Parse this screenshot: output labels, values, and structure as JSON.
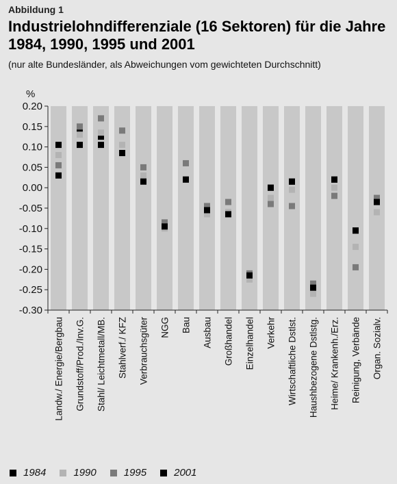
{
  "header": {
    "label": "Abbildung 1",
    "title": "Industrielohndifferenziale (16 Sektoren) für die Jahre 1984, 1990, 1995 und 2001",
    "subtitle": "(nur alte Bundesländer, als Abweichungen vom gewichteten Durchschnitt)"
  },
  "chart_data": {
    "type": "scatter",
    "title": "",
    "xlabel": "",
    "ylabel": "%",
    "ylim": [
      -0.3,
      0.2
    ],
    "yticks": [
      "0.20",
      "0.15",
      "0.10",
      "0.05",
      "0.00",
      "-0.05",
      "-0.10",
      "-0.15",
      "-0.20",
      "-0.25",
      "-0.30"
    ],
    "grid": false,
    "legend_position": "bottom",
    "categories": [
      "Landw./ Energie/Bergbau",
      "Grundstoff/Prod./Inv.G.",
      "Stahl/ Leichtmetall/MB.",
      "Stahlverf./ KFZ",
      "Verbrauchsgüter",
      "NGG",
      "Bau",
      "Ausbau",
      "Großhandel",
      "Einzelhandel",
      "Verkehr",
      "Wirtschaftliche Dstlst.",
      "Haushbezogene Dstlstg.",
      "Heime/ Krankenh./Erz.",
      "Reinigung, Verbände",
      "Organ. Sozialv."
    ],
    "series": [
      {
        "name": "1984",
        "color": "#000000",
        "values": [
          0.105,
          0.14,
          0.125,
          0.085,
          0.02,
          -0.09,
          0.02,
          -0.06,
          -0.06,
          -0.215,
          0.0,
          0.015,
          -0.24,
          0.02,
          -0.105,
          -0.035
        ]
      },
      {
        "name": "1990",
        "color": "#b3b3b3",
        "values": [
          0.08,
          0.13,
          0.135,
          0.105,
          0.03,
          -0.1,
          0.02,
          -0.065,
          -0.06,
          -0.225,
          -0.025,
          -0.005,
          -0.26,
          0.0,
          -0.145,
          -0.06
        ]
      },
      {
        "name": "1995",
        "color": "#7a7a7a",
        "values": [
          0.055,
          0.15,
          0.17,
          0.14,
          0.05,
          -0.085,
          0.06,
          -0.045,
          -0.035,
          -0.21,
          -0.04,
          -0.045,
          -0.235,
          -0.02,
          -0.195,
          -0.025
        ]
      },
      {
        "name": "2001",
        "color": "#000000",
        "values": [
          0.03,
          0.105,
          0.105,
          0.085,
          0.015,
          -0.095,
          0.02,
          -0.055,
          -0.065,
          -0.215,
          0.0,
          0.015,
          -0.245,
          0.02,
          -0.105,
          -0.035
        ]
      }
    ]
  }
}
